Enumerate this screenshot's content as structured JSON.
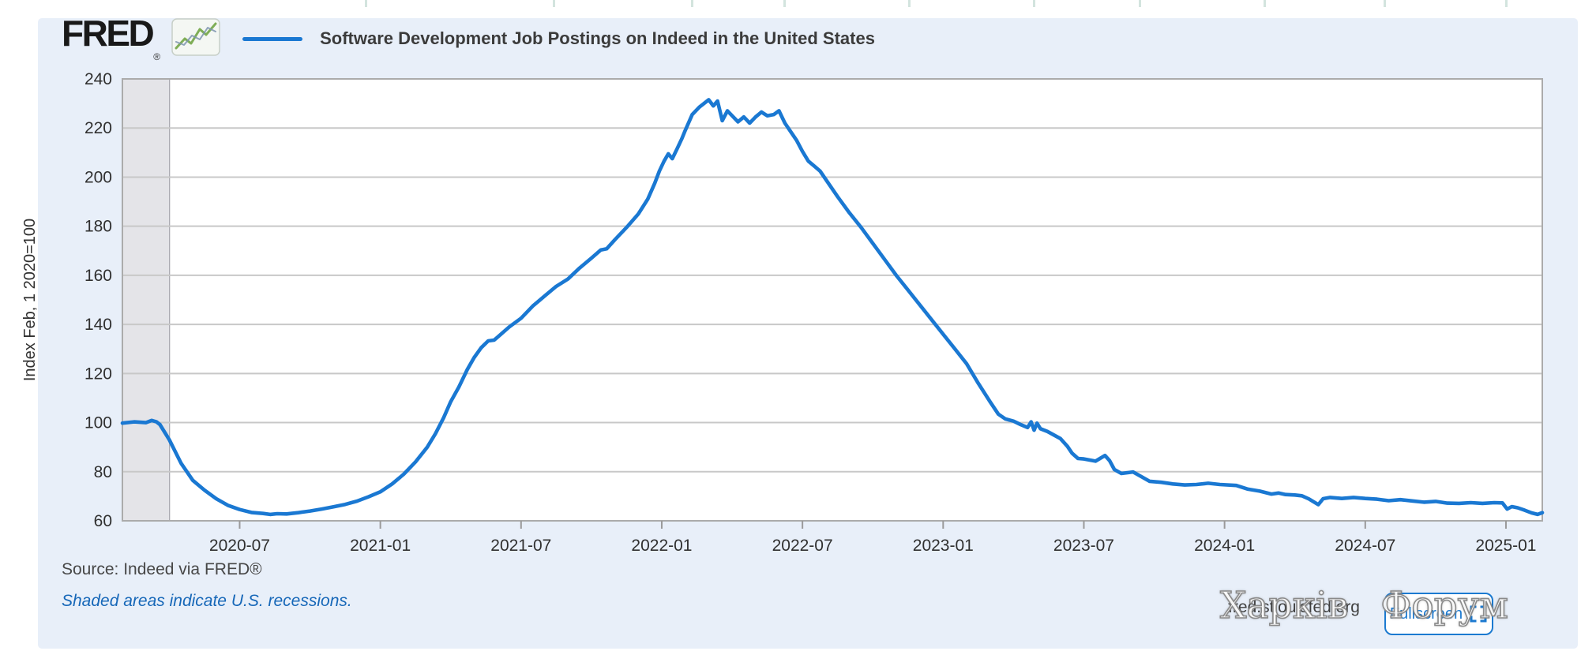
{
  "header": {
    "logo_text": "FRED",
    "logo_reg": "®",
    "series_legend": {
      "label": "Software Development Job Postings on Indeed in the United States",
      "line_color": "#1a78d2"
    }
  },
  "footer": {
    "source_text": "Source: Indeed via FRED®",
    "recessions_note": "Shaded areas indicate U.S. recessions.",
    "site_link": "fred.stlouisfed.org",
    "fullscreen_label": "Fullscreen"
  },
  "watermark": {
    "text": "Харків Форум"
  },
  "colors": {
    "card_bg": "#e8eff9",
    "plot_bg": "#ffffff",
    "grid": "#c8c8c8",
    "plot_border": "#ababab",
    "axis_text": "#303030",
    "line": "#1a78d2",
    "recession_fill": "#e4e4e8",
    "recession_edge": "#a9a9b0",
    "link_blue": "#1667b8"
  },
  "top_ruler_ticks_x": [
    462,
    700,
    875,
    992,
    1150,
    1308,
    1442,
    1600,
    1752,
    1906
  ],
  "chart_data": {
    "type": "line",
    "title": "Software Development Job Postings on Indeed in the United States",
    "xlabel": "",
    "ylabel": "Index Feb, 1 2020=100",
    "ylim": [
      60,
      240
    ],
    "y_ticks": [
      60,
      80,
      100,
      120,
      140,
      160,
      180,
      200,
      220,
      240
    ],
    "grid": "horizontal",
    "legend_position": "top-left",
    "x_domain_months_from_2020_02": [
      0,
      60.55
    ],
    "x_ticks": [
      {
        "m": 5,
        "label": "2020-07"
      },
      {
        "m": 11,
        "label": "2021-01"
      },
      {
        "m": 17,
        "label": "2021-07"
      },
      {
        "m": 23,
        "label": "2022-01"
      },
      {
        "m": 29,
        "label": "2022-07"
      },
      {
        "m": 35,
        "label": "2023-01"
      },
      {
        "m": 41,
        "label": "2023-07"
      },
      {
        "m": 47,
        "label": "2024-01"
      },
      {
        "m": 53,
        "label": "2024-07"
      },
      {
        "m": 59,
        "label": "2025-01"
      }
    ],
    "recession_bands_months": [
      [
        0,
        2.01
      ]
    ],
    "series": [
      {
        "name": "Software Development Job Postings on Indeed in the United States",
        "color": "#1a78d2",
        "points": [
          [
            0,
            99.8
          ],
          [
            0.5,
            100.3
          ],
          [
            1,
            100
          ],
          [
            1.25,
            100.9
          ],
          [
            1.45,
            100.3
          ],
          [
            1.6,
            99.2
          ],
          [
            2,
            93
          ],
          [
            2.5,
            83.5
          ],
          [
            3,
            76.5
          ],
          [
            3.5,
            72.5
          ],
          [
            4,
            69
          ],
          [
            4.5,
            66.3
          ],
          [
            5,
            64.6
          ],
          [
            5.5,
            63.4
          ],
          [
            6,
            63
          ],
          [
            6.3,
            62.6
          ],
          [
            6.6,
            62.9
          ],
          [
            7,
            62.8
          ],
          [
            7.5,
            63.3
          ],
          [
            8,
            64
          ],
          [
            8.5,
            64.8
          ],
          [
            9,
            65.7
          ],
          [
            9.5,
            66.7
          ],
          [
            10,
            68
          ],
          [
            10.5,
            69.8
          ],
          [
            11,
            71.8
          ],
          [
            11.5,
            75
          ],
          [
            12,
            79
          ],
          [
            12.5,
            84
          ],
          [
            13,
            90
          ],
          [
            13.35,
            95.5
          ],
          [
            13.7,
            102
          ],
          [
            14,
            108.5
          ],
          [
            14.35,
            114.5
          ],
          [
            14.7,
            121.5
          ],
          [
            15,
            126.5
          ],
          [
            15.3,
            130.5
          ],
          [
            15.6,
            133.3
          ],
          [
            15.85,
            133.6
          ],
          [
            16,
            134.8
          ],
          [
            16.5,
            139
          ],
          [
            17,
            142.5
          ],
          [
            17.5,
            147.5
          ],
          [
            18,
            151.5
          ],
          [
            18.5,
            155.5
          ],
          [
            19,
            158.5
          ],
          [
            19.5,
            163
          ],
          [
            20,
            167
          ],
          [
            20.4,
            170.3
          ],
          [
            20.65,
            170.8
          ],
          [
            21,
            174.5
          ],
          [
            21.5,
            179.5
          ],
          [
            22,
            185
          ],
          [
            22.4,
            191
          ],
          [
            22.7,
            197.5
          ],
          [
            22.9,
            202.5
          ],
          [
            23.1,
            206.5
          ],
          [
            23.28,
            209.5
          ],
          [
            23.45,
            207.5
          ],
          [
            23.65,
            211.5
          ],
          [
            23.85,
            215.5
          ],
          [
            24,
            219
          ],
          [
            24.3,
            225.5
          ],
          [
            24.6,
            228.5
          ],
          [
            25,
            231.5
          ],
          [
            25.2,
            229
          ],
          [
            25.38,
            231
          ],
          [
            25.58,
            223
          ],
          [
            25.8,
            227
          ],
          [
            26,
            225
          ],
          [
            26.25,
            222.5
          ],
          [
            26.5,
            224.5
          ],
          [
            26.75,
            222
          ],
          [
            27,
            224.5
          ],
          [
            27.25,
            226.5
          ],
          [
            27.5,
            225
          ],
          [
            27.78,
            225.5
          ],
          [
            28,
            227
          ],
          [
            28.25,
            222
          ],
          [
            28.5,
            218.5
          ],
          [
            28.75,
            215
          ],
          [
            29,
            210.5
          ],
          [
            29.25,
            206.5
          ],
          [
            29.5,
            204.5
          ],
          [
            29.75,
            202.5
          ],
          [
            30,
            199
          ],
          [
            30.5,
            192
          ],
          [
            31,
            185.5
          ],
          [
            31.5,
            179.5
          ],
          [
            32,
            173
          ],
          [
            32.5,
            166.5
          ],
          [
            33,
            160
          ],
          [
            33.5,
            154
          ],
          [
            34,
            148
          ],
          [
            34.5,
            142
          ],
          [
            35,
            136
          ],
          [
            35.5,
            130
          ],
          [
            36,
            124
          ],
          [
            36.5,
            116
          ],
          [
            37,
            108.5
          ],
          [
            37.35,
            103.5
          ],
          [
            37.65,
            101.5
          ],
          [
            38,
            100.6
          ],
          [
            38.3,
            99.2
          ],
          [
            38.6,
            98
          ],
          [
            38.75,
            100.3
          ],
          [
            38.88,
            96.9
          ],
          [
            39,
            99.8
          ],
          [
            39.15,
            97.5
          ],
          [
            39.45,
            96.4
          ],
          [
            40,
            93.5
          ],
          [
            40.3,
            90.3
          ],
          [
            40.5,
            87.5
          ],
          [
            40.75,
            85.4
          ],
          [
            41,
            85.2
          ],
          [
            41.5,
            84.3
          ],
          [
            41.9,
            86.6
          ],
          [
            42.1,
            84.5
          ],
          [
            42.3,
            80.9
          ],
          [
            42.6,
            79.3
          ],
          [
            43.1,
            79.9
          ],
          [
            43.4,
            78.3
          ],
          [
            43.8,
            76.1
          ],
          [
            44.3,
            75.7
          ],
          [
            44.8,
            75
          ],
          [
            45.3,
            74.6
          ],
          [
            45.8,
            74.8
          ],
          [
            46.3,
            75.3
          ],
          [
            46.8,
            74.8
          ],
          [
            47.5,
            74.4
          ],
          [
            48,
            72.9
          ],
          [
            48.5,
            72.1
          ],
          [
            49,
            70.9
          ],
          [
            49.3,
            71.3
          ],
          [
            49.6,
            70.7
          ],
          [
            50,
            70.5
          ],
          [
            50.3,
            70.2
          ],
          [
            50.6,
            68.9
          ],
          [
            51,
            66.6
          ],
          [
            51.2,
            69
          ],
          [
            51.5,
            69.5
          ],
          [
            52,
            69.1
          ],
          [
            52.5,
            69.5
          ],
          [
            53,
            69.1
          ],
          [
            53.5,
            68.8
          ],
          [
            54,
            68.2
          ],
          [
            54.5,
            68.6
          ],
          [
            55,
            68.1
          ],
          [
            55.5,
            67.6
          ],
          [
            56,
            67.9
          ],
          [
            56.5,
            67.2
          ],
          [
            57,
            67.1
          ],
          [
            57.5,
            67.4
          ],
          [
            58,
            67.1
          ],
          [
            58.5,
            67.4
          ],
          [
            58.85,
            67.3
          ],
          [
            59.05,
            64.8
          ],
          [
            59.25,
            65.8
          ],
          [
            59.5,
            65.3
          ],
          [
            59.8,
            64.3
          ],
          [
            60.1,
            63.2
          ],
          [
            60.35,
            62.6
          ],
          [
            60.55,
            63.3
          ]
        ]
      }
    ]
  }
}
